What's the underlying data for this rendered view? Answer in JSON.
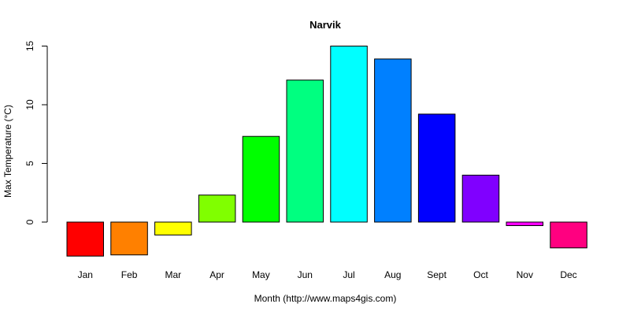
{
  "chart_data": {
    "type": "bar",
    "title": "Narvik",
    "xlabel": "Month (http://www.maps4gis.com)",
    "ylabel": "Max Temperature (°C)",
    "categories": [
      "Jan",
      "Feb",
      "Mar",
      "Apr",
      "May",
      "Jun",
      "Jul",
      "Aug",
      "Sept",
      "Oct",
      "Nov",
      "Dec"
    ],
    "values": [
      -2.9,
      -2.8,
      -1.1,
      2.3,
      7.3,
      12.1,
      15.0,
      13.9,
      9.2,
      4.0,
      -0.3,
      -2.2
    ],
    "colors": [
      "#FF0000",
      "#FF8000",
      "#FFFF00",
      "#80FF00",
      "#00FF00",
      "#00FF80",
      "#00FFFF",
      "#0080FF",
      "#0000FF",
      "#8000FF",
      "#FF00FF",
      "#FF0080"
    ],
    "yticks": [
      "0",
      "5",
      "10",
      "15"
    ],
    "ylim": [
      -3,
      15
    ],
    "grid": false
  }
}
